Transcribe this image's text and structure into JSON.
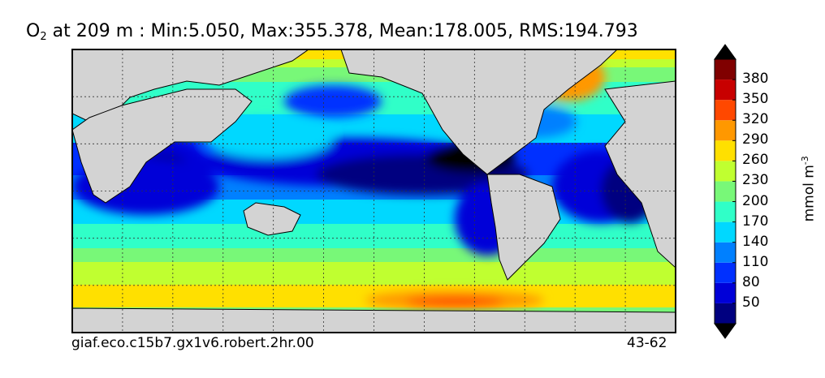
{
  "title": {
    "prefix": "O",
    "subscript": "2",
    "rest": " at 209 m : Min:5.050, Max:355.378, Mean:178.005, RMS:194.793"
  },
  "footer": {
    "left": "giaf.eco.c15b7.gx1v6.robert.2hr.00",
    "right": "43-62"
  },
  "chart_data": {
    "type": "heatmap",
    "variable": "O2",
    "depth": "209 m",
    "statistics": {
      "min": 5.05,
      "max": 355.378,
      "mean": 178.005,
      "rms": 194.793
    },
    "colorbar": {
      "unit": "mmol m",
      "unit_exponent": "-3",
      "tick_labels": [
        "50",
        "80",
        "110",
        "140",
        "170",
        "200",
        "230",
        "260",
        "290",
        "320",
        "350",
        "380"
      ],
      "levels": [
        20,
        50,
        80,
        110,
        140,
        170,
        200,
        230,
        260,
        290,
        320,
        350,
        380,
        410
      ],
      "colors": [
        "#000080",
        "#0000d8",
        "#0030ff",
        "#0080ff",
        "#00d8ff",
        "#30ffc8",
        "#78f878",
        "#c0ff30",
        "#ffe000",
        "#ff9800",
        "#ff4800",
        "#c80000",
        "#800000"
      ],
      "extend": "both",
      "under_color": "#000000",
      "over_color": "#000000"
    },
    "land_color": "#d3d3d3",
    "grid": true,
    "projection": "global lat-lon, centered on the Pacific"
  }
}
